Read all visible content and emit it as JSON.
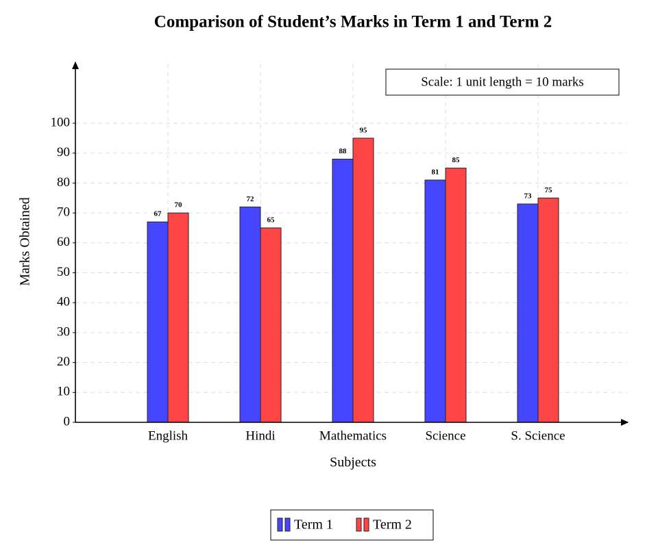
{
  "chart_data": {
    "type": "bar",
    "title": "Comparison of Student’s Marks in Term 1 and Term 2",
    "annotation": "Scale: 1 unit length = 10 marks",
    "x_label": "Subjects",
    "y_label": "Marks Obtained",
    "categories": [
      "English",
      "Hindi",
      "Mathematics",
      "Science",
      "S. Science"
    ],
    "series": [
      {
        "name": "Term 1",
        "color": "#4646ff",
        "values": [
          67,
          72,
          88,
          81,
          73
        ]
      },
      {
        "name": "Term 2",
        "color": "#ff4646",
        "values": [
          70,
          65,
          95,
          85,
          75
        ]
      }
    ],
    "ylim": [
      0,
      120
    ],
    "yticks": [
      0,
      10,
      20,
      30,
      40,
      50,
      60,
      70,
      80,
      90,
      100
    ],
    "grid": true,
    "legend": "bottom"
  }
}
